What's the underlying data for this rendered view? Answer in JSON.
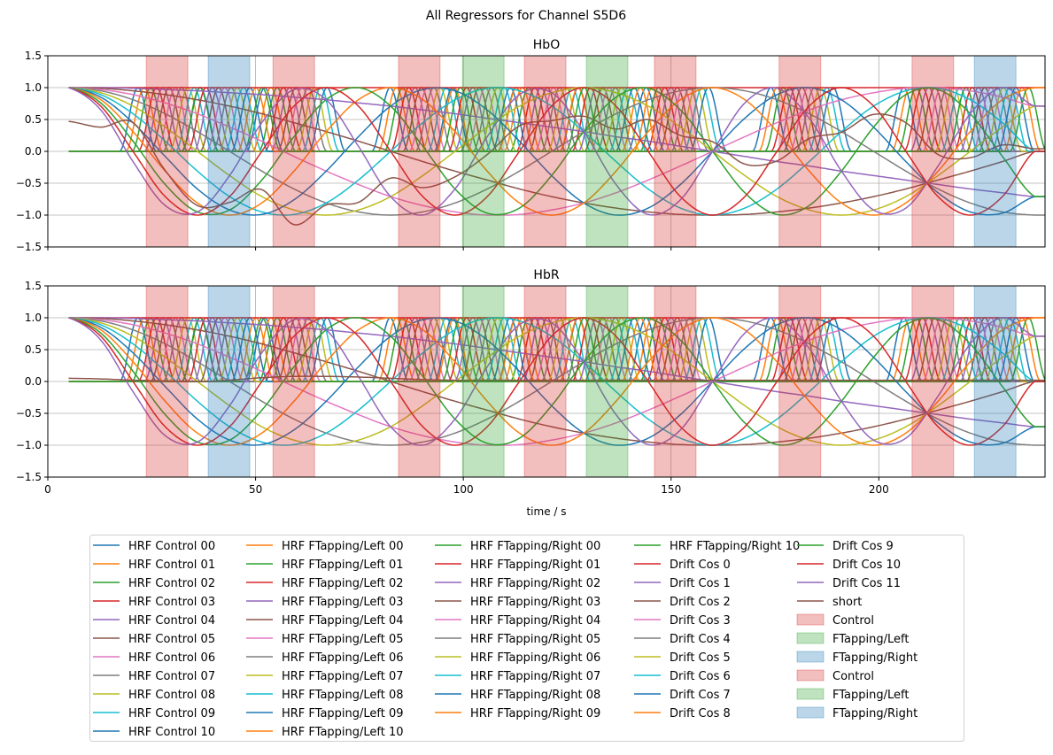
{
  "chart_data": {
    "type": "line",
    "title": "All Regressors for Channel S5D6",
    "xlabel": "time / s",
    "xlim": [
      0,
      240
    ],
    "ylim": [
      -1.5,
      1.5
    ],
    "xticks": [
      0,
      50,
      100,
      150,
      200
    ],
    "xtick_labels": [
      "0",
      "50",
      "100",
      "150",
      "200"
    ],
    "yticks": [
      1.5,
      1.0,
      0.5,
      0.0,
      -0.5,
      -1.0,
      -1.5
    ],
    "ytick_labels": [
      "1.5",
      "1.0",
      "0.5",
      "0.0",
      "−0.5",
      "−1.0",
      "−1.5"
    ],
    "grid": true,
    "legend_position": "bottom",
    "panels": [
      {
        "title": "HbO",
        "short_values": [
          0.47,
          0.38,
          0.45,
          -0.3,
          -0.85,
          -0.8,
          -0.6,
          -1.15,
          -0.84,
          -0.8,
          -0.42,
          -0.57,
          -0.4,
          -0.05,
          0.4,
          0.48,
          0.55,
          0.35,
          0.5,
          0.25,
          0.15,
          -0.2,
          -0.15,
          0.2,
          0.3,
          0.58,
          0.45,
          -0.05,
          -0.1,
          0.1,
          0.04
        ]
      },
      {
        "title": "HbR",
        "short_values": [
          0.05,
          0.04,
          0.02,
          0.01,
          0.0,
          0.02,
          0.06,
          0.08,
          0.08,
          0.07,
          0.05,
          0.03,
          0.02,
          0.02,
          0.02,
          0.02,
          0.02,
          0.02,
          0.02,
          0.02,
          0.02,
          0.02,
          0.02,
          0.02,
          0.02,
          0.02,
          0.02,
          0.02,
          0.02,
          0.02,
          0.02
        ]
      }
    ],
    "x": [
      5,
      12.75,
      20.5,
      28.25,
      36,
      43.75,
      51.5,
      59.25,
      67,
      74.75,
      82.5,
      90.25,
      98,
      105.75,
      113.5,
      121.25,
      129,
      136.75,
      144.5,
      152.25,
      160,
      167.75,
      175.5,
      183.25,
      191,
      198.75,
      206.5,
      214.25,
      222,
      229.75,
      237.5
    ],
    "hrf_series": [
      {
        "name": "HRF Control 00",
        "color": "#1f77b4",
        "peak_times": [
          21.7,
          52.2,
          82.4,
          112.7,
          144.0,
          174.0,
          206.0
        ]
      },
      {
        "name": "HRF Control 01",
        "color": "#ff7f0e",
        "peak_times": [
          23.2,
          53.7,
          83.9,
          114.2,
          145.5,
          175.5,
          207.5
        ]
      },
      {
        "name": "HRF Control 02",
        "color": "#2ca02c",
        "peak_times": [
          24.7,
          55.2,
          85.4,
          115.7,
          147.0,
          177.0,
          209.0
        ]
      },
      {
        "name": "HRF Control 03",
        "color": "#d62728",
        "peak_times": [
          26.2,
          56.7,
          86.9,
          117.2,
          148.5,
          178.5,
          210.5
        ]
      },
      {
        "name": "HRF Control 04",
        "color": "#9467bd",
        "peak_times": [
          27.7,
          58.2,
          88.4,
          118.7,
          150.0,
          180.0,
          212.0
        ]
      },
      {
        "name": "HRF Control 05",
        "color": "#8c564b",
        "peak_times": [
          29.2,
          59.7,
          89.9,
          120.2,
          151.5,
          181.5,
          213.5
        ]
      },
      {
        "name": "HRF Control 06",
        "color": "#e377c2",
        "peak_times": [
          30.7,
          61.2,
          91.4,
          121.7,
          153.0,
          183.0,
          215.0
        ]
      },
      {
        "name": "HRF Control 07",
        "color": "#7f7f7f",
        "peak_times": [
          32.2,
          62.7,
          92.9,
          123.2,
          154.5,
          184.5,
          216.5
        ]
      },
      {
        "name": "HRF Control 08",
        "color": "#bcbd22",
        "peak_times": [
          33.7,
          64.2,
          94.4,
          124.7,
          156.0,
          186.0,
          218.0
        ]
      },
      {
        "name": "HRF Control 09",
        "color": "#17becf",
        "peak_times": [
          35.2,
          65.7,
          95.9,
          126.2,
          157.5,
          187.5,
          219.5
        ]
      },
      {
        "name": "HRF Control 10",
        "color": "#1f77b4",
        "peak_times": [
          36.7,
          67.2,
          97.4,
          127.7,
          159.0,
          189.0,
          221.0
        ]
      },
      {
        "name": "HRF FTapping/Left 00",
        "color": "#ff7f0e",
        "peak_times": [
          97.8,
          127.6
        ]
      },
      {
        "name": "HRF FTapping/Left 01",
        "color": "#2ca02c",
        "peak_times": [
          99.3,
          129.1
        ]
      },
      {
        "name": "HRF FTapping/Left 02",
        "color": "#d62728",
        "peak_times": [
          100.8,
          130.6
        ]
      },
      {
        "name": "HRF FTapping/Left 03",
        "color": "#9467bd",
        "peak_times": [
          102.3,
          132.1
        ]
      },
      {
        "name": "HRF FTapping/Left 04",
        "color": "#8c564b",
        "peak_times": [
          103.8,
          133.6
        ]
      },
      {
        "name": "HRF FTapping/Left 05",
        "color": "#e377c2",
        "peak_times": [
          105.3,
          135.1
        ]
      },
      {
        "name": "HRF FTapping/Left 06",
        "color": "#7f7f7f",
        "peak_times": [
          106.8,
          136.6
        ]
      },
      {
        "name": "HRF FTapping/Left 07",
        "color": "#bcbd22",
        "peak_times": [
          108.3,
          138.1
        ]
      },
      {
        "name": "HRF FTapping/Left 08",
        "color": "#17becf",
        "peak_times": [
          109.8,
          139.6
        ]
      },
      {
        "name": "HRF FTapping/Left 09",
        "color": "#1f77b4",
        "peak_times": [
          111.3,
          141.1
        ]
      },
      {
        "name": "HRF FTapping/Left 10",
        "color": "#ff7f0e",
        "peak_times": [
          112.8,
          142.6
        ]
      },
      {
        "name": "HRF FTapping/Right 00",
        "color": "#2ca02c",
        "peak_times": [
          36.6,
          221.0
        ]
      },
      {
        "name": "HRF FTapping/Right 01",
        "color": "#d62728",
        "peak_times": [
          38.1,
          222.5
        ]
      },
      {
        "name": "HRF FTapping/Right 02",
        "color": "#9467bd",
        "peak_times": [
          39.6,
          224.0
        ]
      },
      {
        "name": "HRF FTapping/Right 03",
        "color": "#8c564b",
        "peak_times": [
          41.1,
          225.5
        ]
      },
      {
        "name": "HRF FTapping/Right 04",
        "color": "#e377c2",
        "peak_times": [
          42.6,
          227.0
        ]
      },
      {
        "name": "HRF FTapping/Right 05",
        "color": "#7f7f7f",
        "peak_times": [
          44.1,
          228.5
        ]
      },
      {
        "name": "HRF FTapping/Right 06",
        "color": "#bcbd22",
        "peak_times": [
          45.6,
          230.0
        ]
      },
      {
        "name": "HRF FTapping/Right 07",
        "color": "#17becf",
        "peak_times": [
          47.1,
          231.5
        ]
      },
      {
        "name": "HRF FTapping/Right 08",
        "color": "#1f77b4",
        "peak_times": [
          48.6,
          233.0
        ]
      },
      {
        "name": "HRF FTapping/Right 09",
        "color": "#ff7f0e",
        "peak_times": [
          50.1,
          234.5
        ]
      },
      {
        "name": "HRF FTapping/Right 10",
        "color": "#2ca02c",
        "peak_times": [
          51.6,
          236.0
        ]
      }
    ],
    "drift_series": [
      {
        "name": "Drift Cos 0",
        "color": "#d62728",
        "values": [
          1,
          1,
          1,
          1,
          1,
          1,
          1,
          1,
          1,
          1,
          1,
          1,
          1,
          1,
          1,
          1,
          1,
          1,
          1,
          1,
          1,
          1,
          1,
          1,
          1,
          1,
          1,
          1,
          1,
          1,
          1
        ]
      },
      {
        "name": "Drift Cos 1",
        "color": "#9467bd",
        "values": [
          1,
          1,
          0.99,
          0.97,
          0.95,
          0.92,
          0.89,
          0.85,
          0.81,
          0.76,
          0.71,
          0.65,
          0.59,
          0.52,
          0.45,
          0.38,
          0.31,
          0.23,
          0.16,
          0.08,
          0,
          -0.08,
          -0.16,
          -0.23,
          -0.31,
          -0.38,
          -0.45,
          -0.52,
          -0.59,
          -0.65,
          -0.71
        ]
      },
      {
        "name": "Drift Cos 2",
        "color": "#8c564b",
        "values": [
          1,
          0.99,
          0.95,
          0.89,
          0.81,
          0.71,
          0.59,
          0.45,
          0.31,
          0.16,
          0,
          -0.16,
          -0.31,
          -0.45,
          -0.59,
          -0.71,
          -0.81,
          -0.89,
          -0.95,
          -0.99,
          -1,
          -0.99,
          -0.95,
          -0.89,
          -0.81,
          -0.71,
          -0.59,
          -0.45,
          -0.31,
          -0.16,
          0
        ]
      },
      {
        "name": "Drift Cos 3",
        "color": "#e377c2",
        "values": [
          1,
          0.97,
          0.89,
          0.76,
          0.59,
          0.38,
          0.16,
          -0.08,
          -0.31,
          -0.52,
          -0.71,
          -0.85,
          -0.95,
          -1,
          -0.99,
          -0.92,
          -0.81,
          -0.65,
          -0.45,
          -0.23,
          0,
          0.23,
          0.45,
          0.65,
          0.81,
          0.92,
          0.99,
          1,
          0.95,
          0.85,
          0.71
        ]
      },
      {
        "name": "Drift Cos 4",
        "color": "#7f7f7f",
        "values": [
          1,
          0.95,
          0.81,
          0.59,
          0.31,
          0,
          -0.31,
          -0.59,
          -0.81,
          -0.95,
          -1,
          -0.95,
          -0.81,
          -0.59,
          -0.31,
          0,
          0.31,
          0.59,
          0.81,
          0.95,
          1,
          0.95,
          0.81,
          0.59,
          0.31,
          0,
          -0.31,
          -0.59,
          -0.81,
          -0.95,
          -1
        ]
      },
      {
        "name": "Drift Cos 5",
        "color": "#bcbd22",
        "values": [
          1,
          0.92,
          0.71,
          0.38,
          0,
          -0.38,
          -0.71,
          -0.92,
          -1,
          -0.92,
          -0.71,
          -0.38,
          0,
          0.38,
          0.71,
          0.92,
          1,
          0.92,
          0.71,
          0.38,
          0,
          -0.38,
          -0.71,
          -0.92,
          -1,
          -0.92,
          -0.71,
          -0.38,
          0,
          0.38,
          0.71
        ]
      },
      {
        "name": "Drift Cos 6",
        "color": "#17becf",
        "values": [
          1,
          0.89,
          0.59,
          0.16,
          -0.31,
          -0.71,
          -0.95,
          -0.99,
          -0.81,
          -0.45,
          0,
          0.45,
          0.81,
          0.99,
          0.95,
          0.71,
          0.31,
          -0.16,
          -0.59,
          -0.89,
          -1,
          -0.89,
          -0.59,
          -0.16,
          0.31,
          0.71,
          0.95,
          0.99,
          0.81,
          0.45,
          0
        ]
      },
      {
        "name": "Drift Cos 7",
        "color": "#1f77b4",
        "values": [
          1,
          0.85,
          0.45,
          -0.08,
          -0.59,
          -0.92,
          -0.99,
          -0.76,
          -0.31,
          0.23,
          0.71,
          0.97,
          0.95,
          0.65,
          0.16,
          -0.38,
          -0.81,
          -1,
          -0.89,
          -0.52,
          0,
          0.52,
          0.89,
          1,
          0.81,
          0.38,
          -0.16,
          -0.65,
          -0.95,
          -0.97,
          -0.71
        ]
      },
      {
        "name": "Drift Cos 8",
        "color": "#ff7f0e",
        "values": [
          1,
          0.81,
          0.31,
          -0.31,
          -0.81,
          -1,
          -0.81,
          -0.31,
          0.31,
          0.81,
          1,
          0.81,
          0.31,
          -0.31,
          -0.81,
          -1,
          -0.81,
          -0.31,
          0.31,
          0.81,
          1,
          0.81,
          0.31,
          -0.31,
          -0.81,
          -1,
          -0.81,
          -0.31,
          0.31,
          0.81,
          1
        ]
      },
      {
        "name": "Drift Cos 9",
        "color": "#2ca02c",
        "values": [
          1,
          0.76,
          0.16,
          -0.52,
          -0.95,
          -0.92,
          -0.45,
          0.23,
          0.81,
          1,
          0.71,
          0.08,
          -0.59,
          -0.97,
          -0.89,
          -0.38,
          0.31,
          0.85,
          0.99,
          0.65,
          0,
          -0.65,
          -0.99,
          -0.85,
          -0.31,
          0.38,
          0.89,
          0.97,
          0.59,
          -0.08,
          -0.71
        ]
      },
      {
        "name": "Drift Cos 10",
        "color": "#d62728",
        "values": [
          1,
          0.71,
          0,
          -0.71,
          -1,
          -0.71,
          0,
          0.71,
          1,
          0.71,
          0,
          -0.71,
          -1,
          -0.71,
          0,
          0.71,
          1,
          0.71,
          0,
          -0.71,
          -1,
          -0.71,
          0,
          0.71,
          1,
          0.71,
          0,
          -0.71,
          -1,
          -0.71,
          0
        ]
      },
      {
        "name": "Drift Cos 11",
        "color": "#9467bd",
        "values": [
          1,
          0.65,
          -0.16,
          -0.85,
          -0.95,
          -0.38,
          0.45,
          0.97,
          0.81,
          0.08,
          -0.71,
          -1,
          -0.59,
          0.23,
          0.89,
          0.92,
          0.31,
          -0.52,
          -0.99,
          -0.76,
          0,
          0.76,
          0.99,
          0.52,
          -0.31,
          -0.92,
          -0.89,
          -0.23,
          0.59,
          1,
          0.71
        ]
      }
    ],
    "short_series": {
      "name": "short",
      "color": "#8c564b"
    },
    "spans": [
      {
        "condition": "Control",
        "start": 23.7,
        "end": 33.7,
        "color": "#d62728"
      },
      {
        "condition": "FTapping/Right",
        "start": 38.6,
        "end": 48.6,
        "color": "#1f77b4"
      },
      {
        "condition": "Control",
        "start": 54.2,
        "end": 64.2,
        "color": "#d62728"
      },
      {
        "condition": "Control",
        "start": 84.4,
        "end": 94.4,
        "color": "#d62728"
      },
      {
        "condition": "FTapping/Left",
        "start": 99.8,
        "end": 109.8,
        "color": "#2ca02c"
      },
      {
        "condition": "Control",
        "start": 114.7,
        "end": 124.7,
        "color": "#d62728"
      },
      {
        "condition": "FTapping/Left",
        "start": 129.6,
        "end": 139.6,
        "color": "#2ca02c"
      },
      {
        "condition": "Control",
        "start": 146.0,
        "end": 156.0,
        "color": "#d62728"
      },
      {
        "condition": "Control",
        "start": 176.0,
        "end": 186.0,
        "color": "#d62728"
      },
      {
        "condition": "Control",
        "start": 208.0,
        "end": 218.0,
        "color": "#d62728"
      },
      {
        "condition": "FTapping/Right",
        "start": 223.0,
        "end": 233.0,
        "color": "#1f77b4"
      }
    ],
    "span_legend": [
      {
        "name": "Control",
        "color": "#d62728"
      },
      {
        "name": "FTapping/Left",
        "color": "#2ca02c"
      },
      {
        "name": "FTapping/Right",
        "color": "#1f77b4"
      },
      {
        "name": "Control",
        "color": "#d62728"
      },
      {
        "name": "FTapping/Left",
        "color": "#2ca02c"
      },
      {
        "name": "FTapping/Right",
        "color": "#1f77b4"
      }
    ]
  }
}
